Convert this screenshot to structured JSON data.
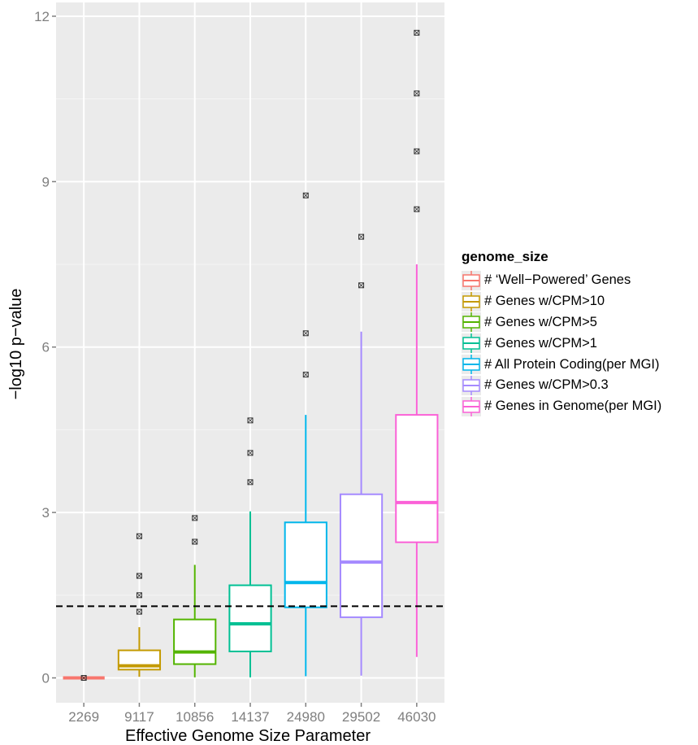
{
  "chart_data": {
    "type": "boxplot",
    "xlabel": "Effective Genome Size Parameter",
    "ylabel": "−log10 p−value",
    "ylim": [
      -0.45,
      12.25
    ],
    "yticks": [
      0,
      3,
      6,
      9,
      12
    ],
    "reference_line": {
      "y": 1.3,
      "style": "dashed"
    },
    "grid": true,
    "legend": {
      "title": "genome_size",
      "placement": "right"
    },
    "categories": [
      "2269",
      "9117",
      "10856",
      "14137",
      "24980",
      "29502",
      "46030"
    ],
    "series": [
      {
        "name": "# ‘Well−Powered’ Genes",
        "color": "#f8766d",
        "whisker_low": 0,
        "q1": 0,
        "median": 0,
        "q3": 0,
        "whisker_high": 0,
        "outliers": [
          0
        ]
      },
      {
        "name": "# Genes w/CPM>10",
        "color": "#c49a00",
        "whisker_low": 0.02,
        "q1": 0.15,
        "median": 0.22,
        "q3": 0.5,
        "whisker_high": 0.92,
        "outliers": [
          1.2,
          1.5,
          1.85,
          2.57
        ]
      },
      {
        "name": "# Genes w/CPM>5",
        "color": "#53b400",
        "whisker_low": 0.01,
        "q1": 0.25,
        "median": 0.47,
        "q3": 1.06,
        "whisker_high": 2.05,
        "outliers": [
          2.47,
          2.9
        ]
      },
      {
        "name": "# Genes w/CPM>1",
        "color": "#00c094",
        "whisker_low": 0.01,
        "q1": 0.48,
        "median": 0.98,
        "q3": 1.68,
        "whisker_high": 3.02,
        "outliers": [
          3.55,
          4.08,
          4.67
        ]
      },
      {
        "name": "# All Protein Coding(per MGI)",
        "color": "#00b6eb",
        "whisker_low": 0.03,
        "q1": 1.28,
        "median": 1.73,
        "q3": 2.82,
        "whisker_high": 4.77,
        "outliers": [
          5.5,
          6.25,
          8.75
        ]
      },
      {
        "name": "# Genes w/CPM>0.3",
        "color": "#a58aff",
        "whisker_low": 0.04,
        "q1": 1.1,
        "median": 2.1,
        "q3": 3.33,
        "whisker_high": 6.28,
        "outliers": [
          7.12,
          8.0
        ]
      },
      {
        "name": "# Genes in Genome(per MGI)",
        "color": "#fb61d7",
        "whisker_low": 0.38,
        "q1": 2.46,
        "median": 3.18,
        "q3": 4.77,
        "whisker_high": 7.5,
        "outliers": [
          8.5,
          9.55,
          10.6,
          11.7
        ]
      }
    ]
  }
}
